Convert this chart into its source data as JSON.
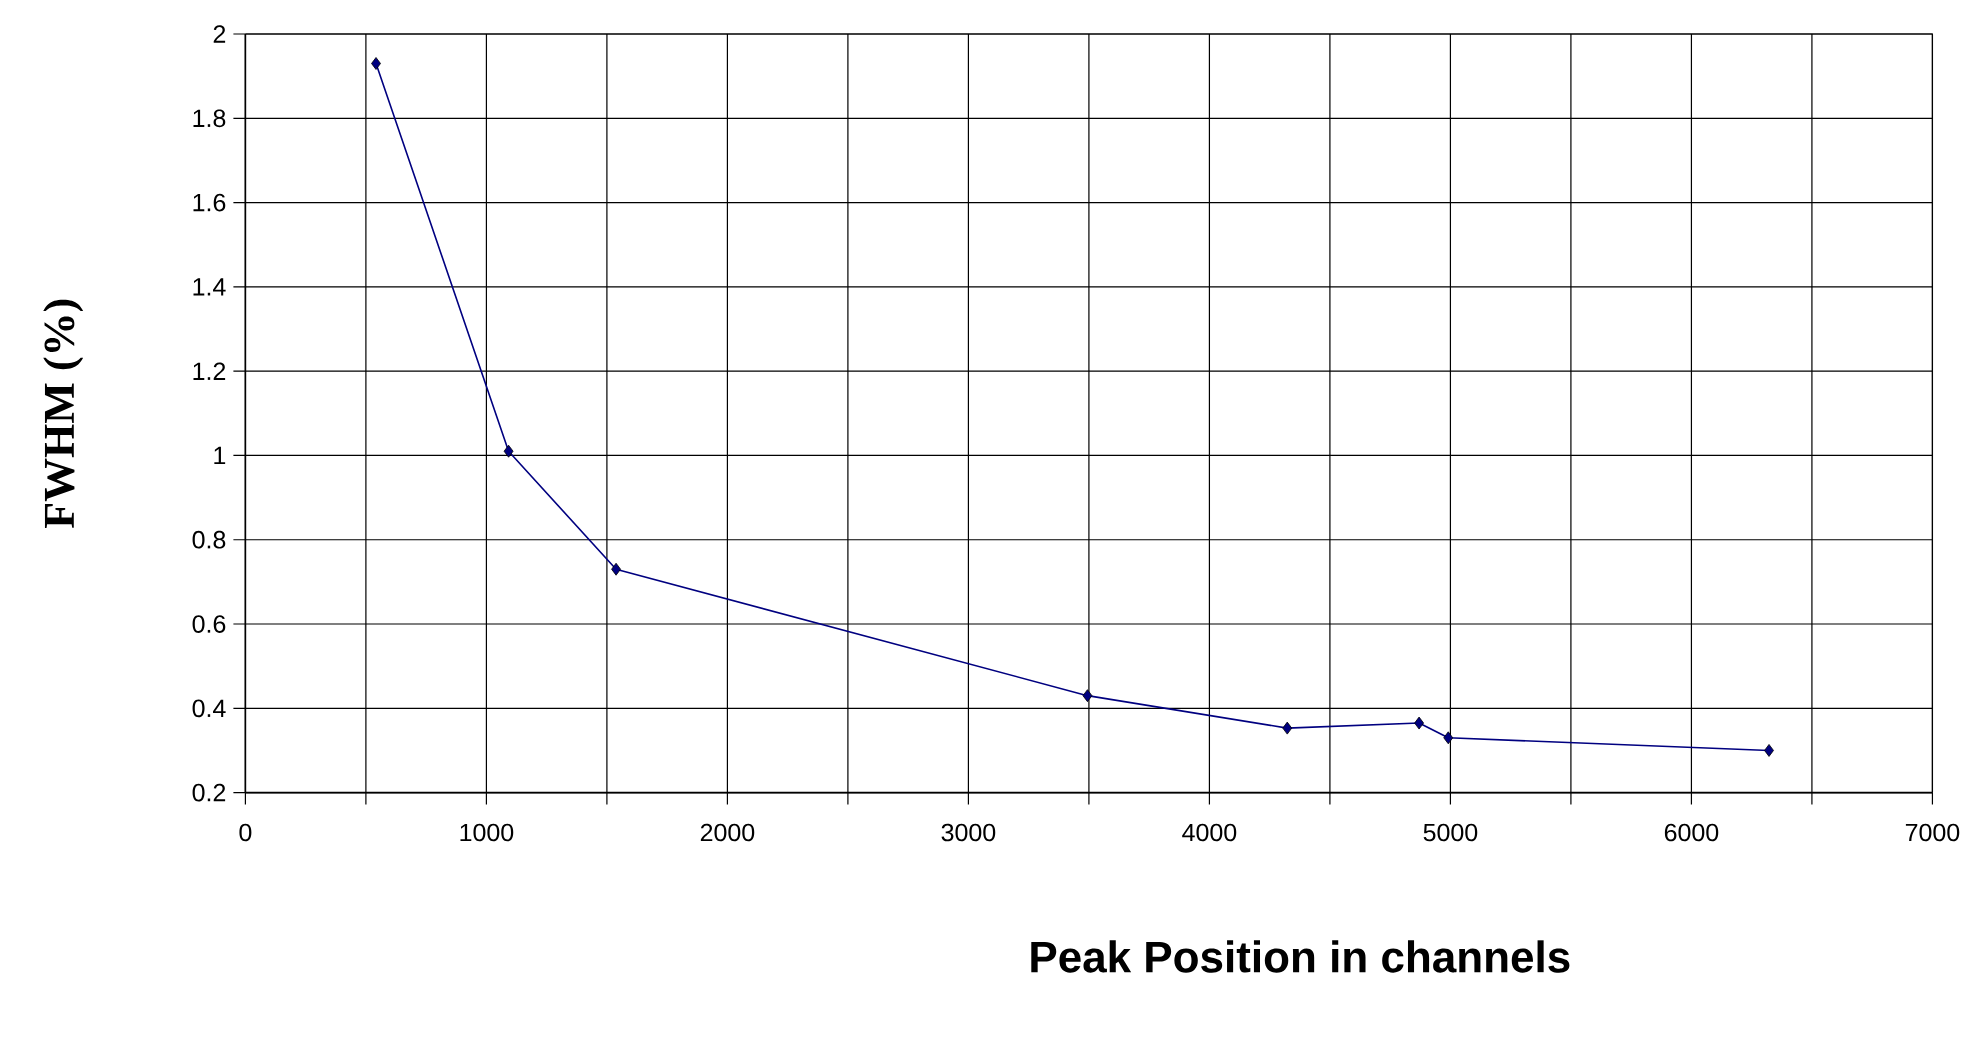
{
  "chart_data": {
    "type": "line",
    "xlabel": "Peak Position in channels",
    "ylabel": "FWHM  (%)",
    "x": [
      542,
      1092,
      1538,
      3494,
      4323,
      4870,
      4991,
      6322
    ],
    "series": [
      {
        "color": "#000080",
        "values": [
          1.93,
          1.01,
          0.73,
          0.43,
          0.353,
          0.365,
          0.33,
          0.3
        ]
      }
    ],
    "xlim": [
      0,
      7000
    ],
    "xticks": [
      0,
      {
        "value": 500,
        "label": null
      },
      1000,
      {
        "value": 1500,
        "label": null
      },
      2000,
      {
        "value": 2500,
        "label": null
      },
      3000,
      {
        "value": 3500,
        "label": null
      },
      4000,
      {
        "value": 4500,
        "label": null
      },
      5000,
      {
        "value": 5500,
        "label": null
      },
      6000,
      {
        "value": 6500,
        "label": null
      },
      7000
    ],
    "ylim": [
      0.2,
      2
    ],
    "yticks": [
      0.2,
      0.4,
      0.6,
      0.8,
      1,
      1.2,
      1.4,
      1.6,
      1.8,
      2
    ],
    "grid": true,
    "marker": "diamond",
    "line_style": "solid"
  }
}
